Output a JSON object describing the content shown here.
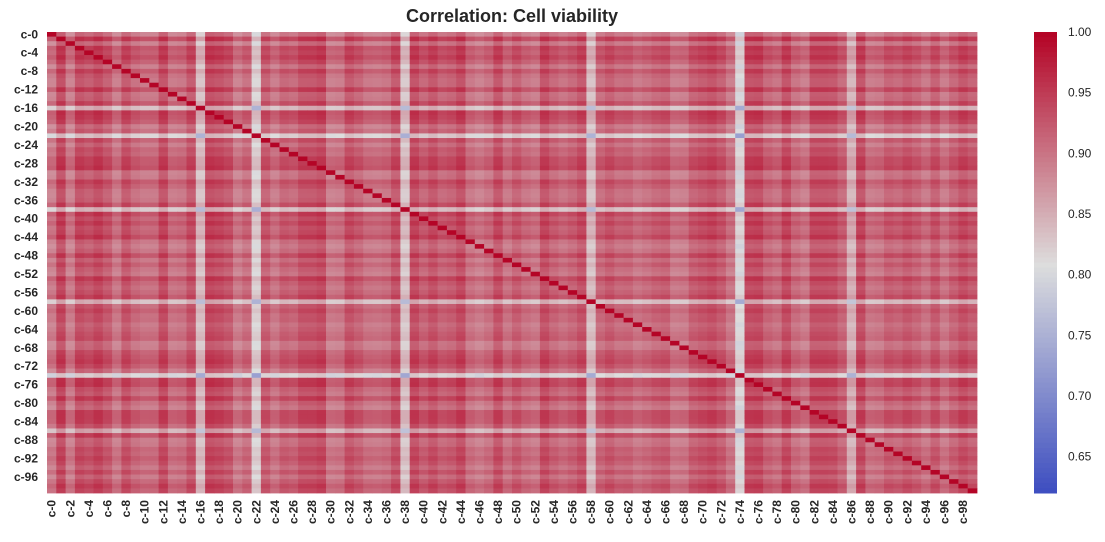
{
  "chart_data": {
    "type": "heatmap",
    "title": "Correlation: Cell viability",
    "xlabel": "",
    "ylabel": "",
    "variables_prefix": "c-",
    "n_variables": 100,
    "x_tick_labels": [
      "c-0",
      "c-2",
      "c-4",
      "c-6",
      "c-8",
      "c-10",
      "c-12",
      "c-14",
      "c-16",
      "c-18",
      "c-20",
      "c-22",
      "c-24",
      "c-26",
      "c-28",
      "c-30",
      "c-32",
      "c-34",
      "c-36",
      "c-38",
      "c-40",
      "c-42",
      "c-44",
      "c-46",
      "c-48",
      "c-50",
      "c-52",
      "c-54",
      "c-56",
      "c-58",
      "c-60",
      "c-62",
      "c-64",
      "c-66",
      "c-68",
      "c-70",
      "c-72",
      "c-74",
      "c-76",
      "c-78",
      "c-80",
      "c-82",
      "c-84",
      "c-86",
      "c-88",
      "c-90",
      "c-92",
      "c-94",
      "c-96",
      "c-98"
    ],
    "y_tick_labels": [
      "c-0",
      "c-4",
      "c-8",
      "c-12",
      "c-16",
      "c-20",
      "c-24",
      "c-28",
      "c-32",
      "c-36",
      "c-40",
      "c-44",
      "c-48",
      "c-52",
      "c-56",
      "c-60",
      "c-64",
      "c-68",
      "c-72",
      "c-76",
      "c-80",
      "c-84",
      "c-88",
      "c-92",
      "c-96"
    ],
    "diagonal_value": 1.0,
    "typical_off_diagonal_range": [
      0.8,
      0.9
    ],
    "low_correlation_variables": {
      "c-74": 0.72,
      "c-22": 0.74,
      "c-38": 0.76,
      "c-16": 0.77,
      "c-58": 0.77,
      "c-86": 0.79
    },
    "colormap": "coolwarm",
    "color_range": [
      0.62,
      1.0
    ],
    "colorbar_ticks": [
      "1.00",
      "0.95",
      "0.90",
      "0.85",
      "0.80",
      "0.75",
      "0.70",
      "0.65"
    ],
    "colors": {
      "low": "#3b4cc0",
      "mid": "#dddddd",
      "high": "#b40426"
    }
  }
}
